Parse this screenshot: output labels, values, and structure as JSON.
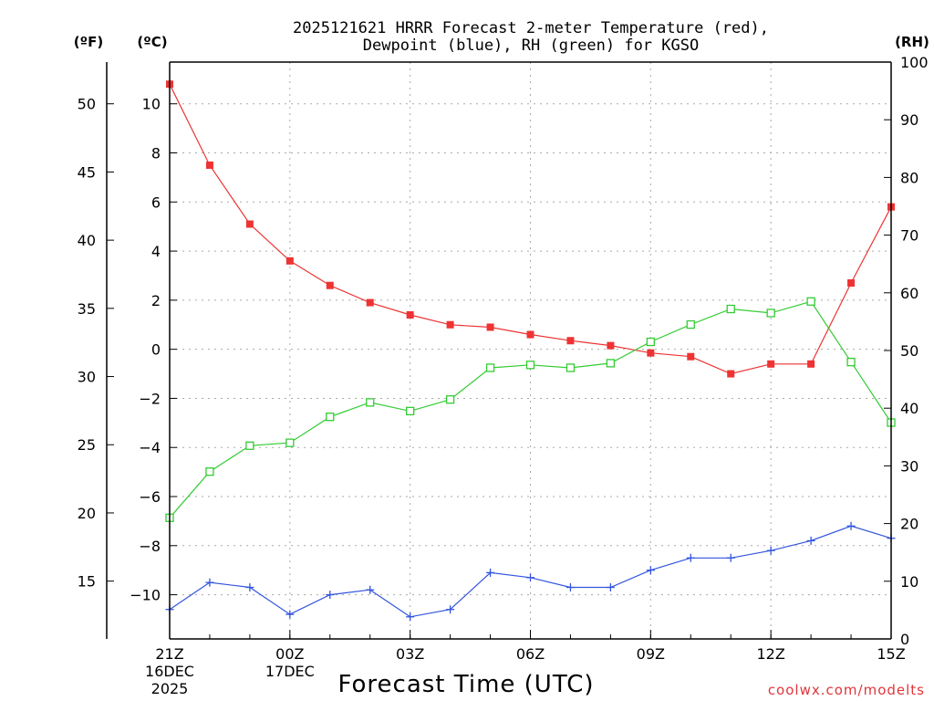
{
  "chart_data": {
    "type": "line",
    "title_line1": "2025121621 HRRR Forecast 2-meter Temperature (red),",
    "title_line2": "Dewpoint (blue), RH (green) for KGSO",
    "xlabel": "Forecast Time (UTC)",
    "credit": "coolwx.com/modelts",
    "units": {
      "fahrenheit": "(ºF)",
      "celsius": "(ºC)",
      "rh": "(RH)"
    },
    "grid": true,
    "x_hours": [
      0,
      1,
      2,
      3,
      4,
      5,
      6,
      7,
      8,
      9,
      10,
      11,
      12,
      13,
      14,
      15,
      16,
      17,
      18
    ],
    "x_ticks": [
      {
        "hour": 0,
        "label": "21Z",
        "sub1": "16DEC",
        "sub2": "2025"
      },
      {
        "hour": 3,
        "label": "00Z",
        "sub1": "17DEC",
        "sub2": ""
      },
      {
        "hour": 6,
        "label": "03Z",
        "sub1": "",
        "sub2": ""
      },
      {
        "hour": 9,
        "label": "06Z",
        "sub1": "",
        "sub2": ""
      },
      {
        "hour": 12,
        "label": "09Z",
        "sub1": "",
        "sub2": ""
      },
      {
        "hour": 15,
        "label": "12Z",
        "sub1": "",
        "sub2": ""
      },
      {
        "hour": 18,
        "label": "15Z",
        "sub1": "",
        "sub2": ""
      }
    ],
    "celsius_axis": {
      "min": -11.8,
      "max": 11.7,
      "ticks": [
        10,
        8,
        6,
        4,
        2,
        0,
        -2,
        -4,
        -6,
        -8,
        -10
      ]
    },
    "fahrenheit_axis": {
      "ticks": [
        50,
        45,
        40,
        35,
        30,
        25,
        20,
        15
      ]
    },
    "rh_axis": {
      "min": 0,
      "max": 100,
      "ticks": [
        100,
        90,
        80,
        70,
        60,
        50,
        40,
        30,
        20,
        10,
        0
      ]
    },
    "series": [
      {
        "name": "Temperature",
        "axis": "celsius",
        "color": "#ee3333",
        "marker": "filled-square",
        "values": [
          10.8,
          7.5,
          5.1,
          3.6,
          2.6,
          1.9,
          1.4,
          1.0,
          0.9,
          0.6,
          0.35,
          0.15,
          -0.15,
          -0.3,
          -1.0,
          -0.6,
          -0.6,
          2.7,
          5.8
        ]
      },
      {
        "name": "Dewpoint",
        "axis": "celsius",
        "color": "#3355dd",
        "marker": "plus",
        "values": [
          -10.6,
          -9.5,
          -9.7,
          -10.8,
          -10.0,
          -9.8,
          -10.9,
          -10.6,
          -9.1,
          -9.3,
          -9.7,
          -9.7,
          -9.0,
          -8.5,
          -8.5,
          -8.2,
          -7.8,
          -7.2,
          -7.7
        ]
      },
      {
        "name": "RH",
        "axis": "rh",
        "color": "#33cc33",
        "marker": "open-square",
        "values": [
          21,
          29,
          33.5,
          34,
          38.5,
          41,
          39.5,
          41.5,
          47,
          47.5,
          47,
          47.8,
          51.5,
          54.5,
          57.2,
          56.5,
          58.5,
          48,
          37.5
        ]
      }
    ]
  }
}
